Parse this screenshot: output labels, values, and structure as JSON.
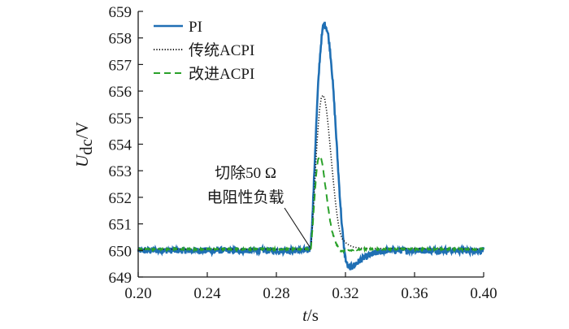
{
  "chart_data": {
    "type": "line",
    "title": "",
    "xlabel": {
      "symbol": "t",
      "unit": "/s"
    },
    "ylabel": {
      "symbol": "U",
      "subscript": "dc",
      "unit": "/V"
    },
    "xlim": [
      0.2,
      0.4
    ],
    "ylim": [
      649,
      659
    ],
    "x_ticks": [
      "0.20",
      "0.24",
      "0.28",
      "0.32",
      "0.36",
      "0.40"
    ],
    "y_ticks": [
      "649",
      "650",
      "651",
      "652",
      "653",
      "654",
      "655",
      "656",
      "657",
      "658",
      "659"
    ],
    "grid": false,
    "legend_position": "top-left",
    "annotation": {
      "lines": [
        "切除50 Ω",
        "电阻性负载"
      ],
      "points_to": [
        0.3,
        650.05
      ]
    },
    "series": [
      {
        "name": "PI",
        "color": "#1f6fb4",
        "style": "solid",
        "noise": 0.12,
        "points": [
          [
            0.2,
            650.0
          ],
          [
            0.299,
            650.0
          ],
          [
            0.3,
            650.3
          ],
          [
            0.301,
            651.4
          ],
          [
            0.302,
            653.0
          ],
          [
            0.303,
            654.6
          ],
          [
            0.304,
            656.0
          ],
          [
            0.305,
            657.1
          ],
          [
            0.306,
            657.9
          ],
          [
            0.307,
            658.4
          ],
          [
            0.308,
            658.5
          ],
          [
            0.309,
            658.4
          ],
          [
            0.31,
            658.1
          ],
          [
            0.311,
            657.6
          ],
          [
            0.312,
            656.9
          ],
          [
            0.313,
            656.0
          ],
          [
            0.314,
            655.0
          ],
          [
            0.315,
            653.9
          ],
          [
            0.316,
            652.8
          ],
          [
            0.317,
            651.8
          ],
          [
            0.318,
            650.9
          ],
          [
            0.319,
            650.2
          ],
          [
            0.32,
            649.7
          ],
          [
            0.321,
            649.45
          ],
          [
            0.322,
            649.35
          ],
          [
            0.324,
            649.4
          ],
          [
            0.327,
            649.55
          ],
          [
            0.33,
            649.7
          ],
          [
            0.335,
            649.85
          ],
          [
            0.34,
            649.95
          ],
          [
            0.345,
            650.0
          ],
          [
            0.4,
            650.0
          ]
        ]
      },
      {
        "name": "传统ACPI",
        "color": "#111111",
        "style": "dotted",
        "noise": 0.0,
        "points": [
          [
            0.2,
            650.05
          ],
          [
            0.3,
            650.05
          ],
          [
            0.301,
            651.1
          ],
          [
            0.302,
            652.3
          ],
          [
            0.303,
            653.5
          ],
          [
            0.304,
            654.5
          ],
          [
            0.305,
            655.3
          ],
          [
            0.306,
            655.75
          ],
          [
            0.307,
            655.85
          ],
          [
            0.308,
            655.7
          ],
          [
            0.309,
            655.3
          ],
          [
            0.31,
            654.7
          ],
          [
            0.311,
            654.0
          ],
          [
            0.312,
            653.3
          ],
          [
            0.313,
            652.6
          ],
          [
            0.314,
            651.95
          ],
          [
            0.315,
            651.4
          ],
          [
            0.316,
            650.95
          ],
          [
            0.317,
            650.65
          ],
          [
            0.318,
            650.45
          ],
          [
            0.32,
            650.3
          ],
          [
            0.322,
            650.2
          ],
          [
            0.325,
            650.12
          ],
          [
            0.33,
            650.08
          ],
          [
            0.4,
            650.05
          ]
        ]
      },
      {
        "name": "改进ACPI",
        "color": "#2aa12a",
        "style": "dashed",
        "noise": 0.03,
        "points": [
          [
            0.2,
            650.05
          ],
          [
            0.3,
            650.05
          ],
          [
            0.301,
            650.9
          ],
          [
            0.302,
            651.9
          ],
          [
            0.303,
            652.8
          ],
          [
            0.304,
            653.4
          ],
          [
            0.305,
            653.55
          ],
          [
            0.306,
            653.45
          ],
          [
            0.307,
            653.1
          ],
          [
            0.308,
            652.6
          ],
          [
            0.309,
            652.1
          ],
          [
            0.31,
            651.6
          ],
          [
            0.311,
            651.15
          ],
          [
            0.312,
            650.8
          ],
          [
            0.313,
            650.55
          ],
          [
            0.314,
            650.35
          ],
          [
            0.315,
            650.2
          ],
          [
            0.316,
            650.1
          ],
          [
            0.317,
            650.0
          ],
          [
            0.318,
            649.97
          ],
          [
            0.32,
            649.97
          ],
          [
            0.323,
            650.0
          ],
          [
            0.326,
            650.03
          ],
          [
            0.33,
            650.05
          ],
          [
            0.4,
            650.05
          ]
        ]
      }
    ]
  }
}
